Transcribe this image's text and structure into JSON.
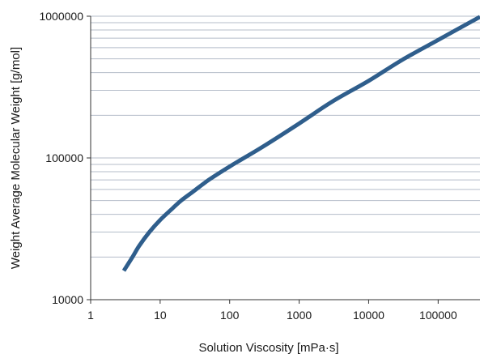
{
  "chart_data": {
    "type": "line",
    "xlabel": "Solution Viscosity  [mPa·s]",
    "ylabel": "Weight Average Molecular Weight  [g/mol]",
    "x_scale": "log",
    "y_scale": "log",
    "xlim": [
      1,
      400000
    ],
    "ylim": [
      10000,
      1000000
    ],
    "x_ticks": [
      1,
      10,
      100,
      1000,
      10000,
      100000
    ],
    "x_tick_labels": [
      "1",
      "10",
      "100",
      "1000",
      "10000",
      "100000"
    ],
    "y_ticks": [
      10000,
      100000,
      1000000
    ],
    "y_tick_labels": [
      "10000",
      "100000",
      "1000000"
    ],
    "grid": "horizontal minor lines",
    "colors": {
      "line": "#2f5e8c",
      "grid": "#b4bdc9",
      "axis": "#333333"
    },
    "series": [
      {
        "x": [
          3,
          4,
          5,
          7,
          10,
          15,
          20,
          30,
          50,
          100,
          150,
          300,
          1000,
          3000,
          10000,
          30000,
          100000,
          400000
        ],
        "y": [
          16000,
          20000,
          24000,
          30000,
          36500,
          44000,
          50000,
          58000,
          70000,
          87000,
          98000,
          120000,
          175000,
          250000,
          350000,
          490000,
          680000,
          990000
        ]
      }
    ]
  }
}
